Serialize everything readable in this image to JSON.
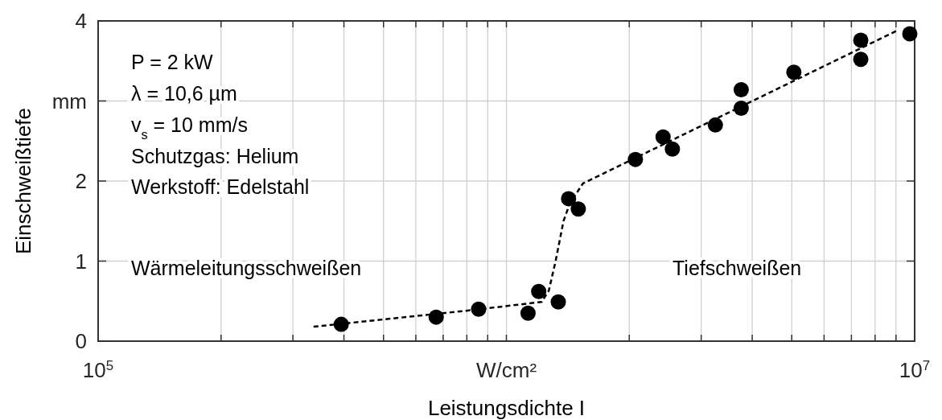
{
  "chart_data": {
    "type": "scatter",
    "xlabel": "Leistungsdichte  I",
    "ylabel": "Einschweißtiefe",
    "log": "x",
    "grid": true,
    "xlim": [
      100000,
      10000000
    ],
    "xticks": [
      {
        "value": 100000,
        "label": "10$^{5}$"
      },
      {
        "value": 200000,
        "label": null
      },
      {
        "value": 300000,
        "label": null
      },
      {
        "value": 400000,
        "label": null
      },
      {
        "value": 500000,
        "label": null
      },
      {
        "value": 600000,
        "label": null
      },
      {
        "value": 700000,
        "label": null
      },
      {
        "value": 800000,
        "label": null
      },
      {
        "value": 900000,
        "label": null
      },
      {
        "value": 1000000,
        "label": "W/cm²"
      },
      {
        "value": 2000000,
        "label": null
      },
      {
        "value": 3000000,
        "label": null
      },
      {
        "value": 4000000,
        "label": null
      },
      {
        "value": 5000000,
        "label": null
      },
      {
        "value": 6000000,
        "label": null
      },
      {
        "value": 7000000,
        "label": null
      },
      {
        "value": 8000000,
        "label": null
      },
      {
        "value": 9000000,
        "label": null
      },
      {
        "value": 10000000,
        "label": "10$^{7}$"
      }
    ],
    "ylim": [
      0,
      4
    ],
    "yticks": [
      0,
      1,
      2,
      {
        "value": 3,
        "label": "mm"
      },
      4
    ],
    "series": [
      {
        "color": "#000000",
        "marker": "circle",
        "x": [
          394000,
          673000,
          855000,
          1130000,
          1200000,
          1340000,
          1420000,
          1500000,
          2070000,
          2420000,
          2550000,
          3250000,
          3760000,
          3760000,
          5060000,
          7380000,
          7380000,
          9730000
        ],
        "values": [
          0.21,
          0.3,
          0.4,
          0.35,
          0.62,
          0.49,
          1.78,
          1.65,
          2.27,
          2.55,
          2.4,
          2.7,
          3.14,
          2.91,
          3.36,
          3.76,
          3.52,
          3.84
        ]
      },
      {
        "type": "line",
        "color": "#000000",
        "marker": "none",
        "line_style": "dashed",
        "x": [
          337000,
          798000,
          1220000,
          1270000,
          1320000,
          1380000,
          1430000,
          1540000,
          9060000
        ],
        "values": [
          0.18,
          0.38,
          0.49,
          0.63,
          1.0,
          1.5,
          1.72,
          1.97,
          3.88
        ]
      }
    ],
    "annotations": [
      "P = 2 kW",
      "λ = 10,6 µm",
      "v$_{s}$ = 10 mm/s",
      "Schutzgas: Helium",
      "Werkstoff: Edelstahl",
      "Wärmeleitungsschweißen",
      "Tiefschweißen"
    ]
  }
}
